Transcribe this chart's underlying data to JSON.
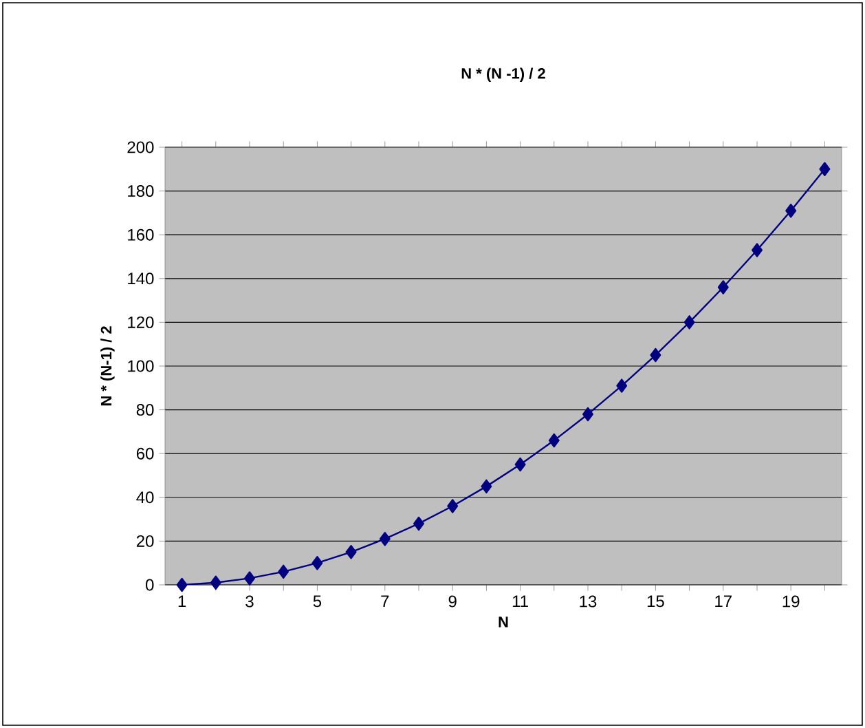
{
  "chart_data": {
    "type": "line",
    "title": "N * (N -1) / 2",
    "xlabel": "N",
    "ylabel": "N * (N-1) / 2",
    "categories": [
      "1",
      null,
      "3",
      null,
      "5",
      null,
      "7",
      null,
      "9",
      null,
      "11",
      null,
      "13",
      null,
      "15",
      null,
      "17",
      null,
      "19",
      null
    ],
    "values": [
      0,
      1,
      3,
      6,
      10,
      15,
      21,
      28,
      36,
      45,
      55,
      66,
      78,
      91,
      105,
      120,
      136,
      153,
      171,
      190
    ],
    "color": "#000080",
    "marker": "diamond",
    "line_style": "solid",
    "ylim": [
      0,
      200
    ],
    "yticks": [
      0,
      20,
      40,
      60,
      80,
      100,
      120,
      140,
      160,
      180,
      200
    ],
    "grid": "y"
  }
}
